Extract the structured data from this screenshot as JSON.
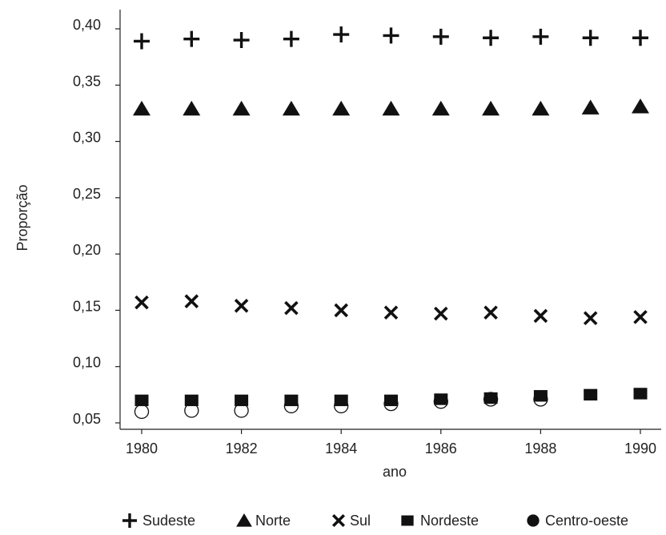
{
  "chart_data": {
    "type": "scatter",
    "xlabel": "ano",
    "ylabel": "Proporção",
    "xlim": [
      1979.7,
      1990.3
    ],
    "ylim": [
      0.05,
      0.41
    ],
    "x_ticks": [
      1980,
      1982,
      1984,
      1986,
      1988,
      1990
    ],
    "y_ticks": [
      "0,05",
      "0,10",
      "0,15",
      "0,20",
      "0,25",
      "0,30",
      "0,35",
      "0,40"
    ],
    "y_tick_values": [
      0.05,
      0.1,
      0.15,
      0.2,
      0.25,
      0.3,
      0.35,
      0.4
    ],
    "x": [
      1980,
      1981,
      1982,
      1983,
      1984,
      1985,
      1986,
      1987,
      1988,
      1989,
      1990
    ],
    "grid": false,
    "legend_position": "bottom",
    "series": [
      {
        "name": "Sudeste",
        "marker": "plus",
        "values": [
          0.389,
          0.391,
          0.39,
          0.391,
          0.395,
          0.394,
          0.393,
          0.392,
          0.393,
          0.392,
          0.392
        ]
      },
      {
        "name": "Norte",
        "marker": "triangle",
        "values": [
          0.329,
          0.329,
          0.329,
          0.329,
          0.329,
          0.329,
          0.329,
          0.329,
          0.329,
          0.33,
          0.331
        ]
      },
      {
        "name": "Sul",
        "marker": "x",
        "values": [
          0.157,
          0.158,
          0.154,
          0.152,
          0.15,
          0.148,
          0.147,
          0.148,
          0.145,
          0.143,
          0.144
        ]
      },
      {
        "name": "Nordeste",
        "marker": "square",
        "values": [
          0.07,
          0.07,
          0.07,
          0.07,
          0.07,
          0.07,
          0.071,
          0.072,
          0.074,
          0.075,
          0.076
        ]
      },
      {
        "name": "Centro-oeste",
        "marker": "circle-open",
        "values": [
          0.06,
          0.061,
          0.061,
          0.065,
          0.065,
          0.067,
          0.069,
          0.071,
          0.071,
          null,
          null
        ]
      }
    ]
  }
}
